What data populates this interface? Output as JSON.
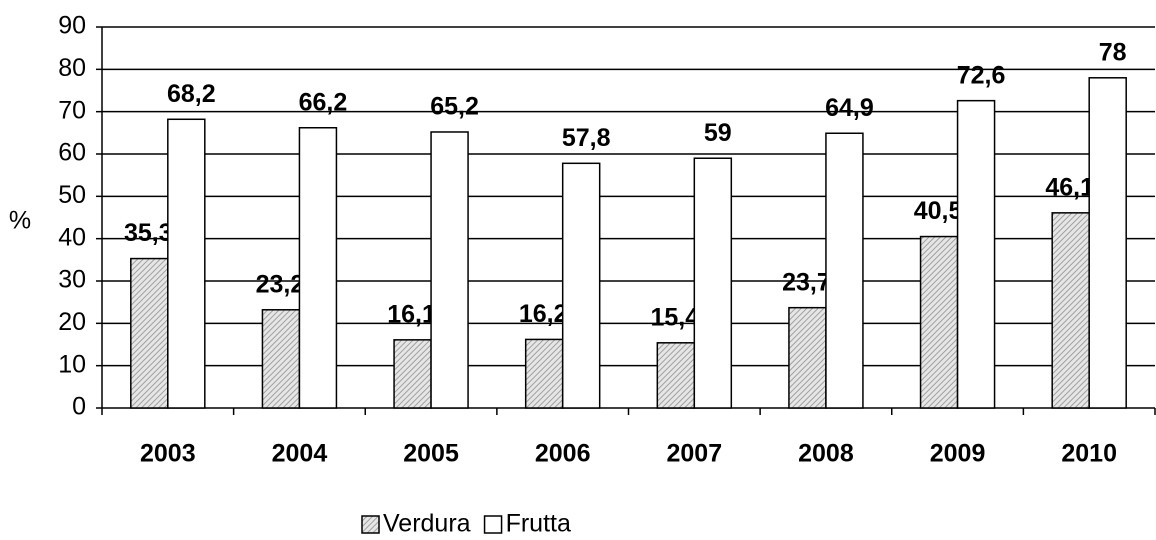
{
  "chart_data": {
    "type": "bar",
    "categories": [
      "2003",
      "2004",
      "2005",
      "2006",
      "2007",
      "2008",
      "2009",
      "2010"
    ],
    "series": [
      {
        "name": "Verdura",
        "color": "#a0a0a0",
        "values": [
          35.3,
          23.2,
          16.1,
          16.2,
          15.4,
          23.7,
          40.5,
          46.1
        ],
        "value_labels": [
          "35,3",
          "23,2",
          "16,1",
          "16,2",
          "15,4",
          "23,7",
          "40,5",
          "46,1"
        ]
      },
      {
        "name": "Frutta",
        "color": "#ffffff",
        "values": [
          68.2,
          66.2,
          65.2,
          57.8,
          59,
          64.9,
          72.6,
          78
        ],
        "value_labels": [
          "68,2",
          "66,2",
          "65,2",
          "57,8",
          "59",
          "64,9",
          "72,6",
          "78"
        ]
      }
    ],
    "ylabel": "%",
    "ylim": [
      0,
      90
    ],
    "yticks": [
      0,
      10,
      20,
      30,
      40,
      50,
      60,
      70,
      80,
      90
    ],
    "grid": true,
    "legend": "bottom"
  }
}
